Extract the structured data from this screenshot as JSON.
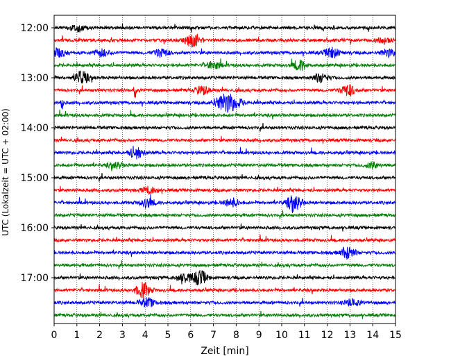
{
  "chart_data": {
    "type": "line",
    "title": "",
    "xlabel": "Zeit  [min]",
    "ylabel": "UTC (Lokalzeit = UTC + 02:00)",
    "xlim": [
      0,
      15
    ],
    "x_ticks": [
      0,
      1,
      2,
      3,
      4,
      5,
      6,
      7,
      8,
      9,
      10,
      11,
      12,
      13,
      14,
      15
    ],
    "y_tick_labels": [
      "12:00",
      "13:00",
      "14:00",
      "15:00",
      "16:00",
      "17:00"
    ],
    "grid": "vertical dotted lines at each minute",
    "trace_colors": [
      "#000000",
      "#ff0000",
      "#0000ff",
      "#008000"
    ],
    "traces": [
      {
        "start": "12:00",
        "events": [
          {
            "t": 1.0,
            "a": 5
          }
        ]
      },
      {
        "start": "12:15",
        "events": [
          {
            "t": 6.1,
            "a": 10
          },
          {
            "t": 14.5,
            "a": 4
          }
        ]
      },
      {
        "start": "12:30",
        "events": [
          {
            "t": 0.2,
            "a": 6
          },
          {
            "t": 2.1,
            "a": 5
          },
          {
            "t": 4.7,
            "a": 6
          },
          {
            "t": 12.2,
            "a": 7
          },
          {
            "t": 14.7,
            "a": 5
          }
        ]
      },
      {
        "start": "12:45",
        "events": [
          {
            "t": 7.0,
            "a": 5
          },
          {
            "t": 10.8,
            "a": 7
          }
        ]
      },
      {
        "start": "13:00",
        "events": [
          {
            "t": 1.2,
            "a": 9
          },
          {
            "t": 11.7,
            "a": 6
          }
        ]
      },
      {
        "start": "13:15",
        "events": [
          {
            "t": 3.55,
            "a": 28
          },
          {
            "t": 6.5,
            "a": 6
          },
          {
            "t": 12.9,
            "a": 8
          }
        ]
      },
      {
        "start": "13:30",
        "events": [
          {
            "t": 0.35,
            "a": 16
          },
          {
            "t": 7.2,
            "a": 5
          },
          {
            "t": 7.6,
            "a": 11
          },
          {
            "t": 8.0,
            "a": 6
          }
        ]
      },
      {
        "start": "13:45",
        "events": []
      },
      {
        "start": "14:00",
        "events": []
      },
      {
        "start": "14:15",
        "events": []
      },
      {
        "start": "14:30",
        "events": [
          {
            "t": 3.6,
            "a": 8
          }
        ]
      },
      {
        "start": "14:45",
        "events": [
          {
            "t": 2.7,
            "a": 4
          },
          {
            "t": 14.0,
            "a": 4
          }
        ]
      },
      {
        "start": "15:00",
        "events": []
      },
      {
        "start": "15:15",
        "events": [
          {
            "t": 4.2,
            "a": 5
          }
        ]
      },
      {
        "start": "15:30",
        "events": [
          {
            "t": 4.1,
            "a": 6
          },
          {
            "t": 7.8,
            "a": 6
          },
          {
            "t": 10.55,
            "a": 11
          }
        ]
      },
      {
        "start": "15:45",
        "events": []
      },
      {
        "start": "16:00",
        "events": []
      },
      {
        "start": "16:15",
        "events": []
      },
      {
        "start": "16:30",
        "events": [
          {
            "t": 12.9,
            "a": 9
          }
        ]
      },
      {
        "start": "16:45",
        "events": []
      },
      {
        "start": "17:00",
        "events": [
          {
            "t": 5.7,
            "a": 6
          },
          {
            "t": 6.4,
            "a": 10
          }
        ]
      },
      {
        "start": "17:15",
        "events": [
          {
            "t": 3.9,
            "a": 10
          }
        ]
      },
      {
        "start": "17:30",
        "events": [
          {
            "t": 4.1,
            "a": 6
          },
          {
            "t": 13.1,
            "a": 5
          }
        ]
      },
      {
        "start": "17:45",
        "events": []
      }
    ]
  }
}
